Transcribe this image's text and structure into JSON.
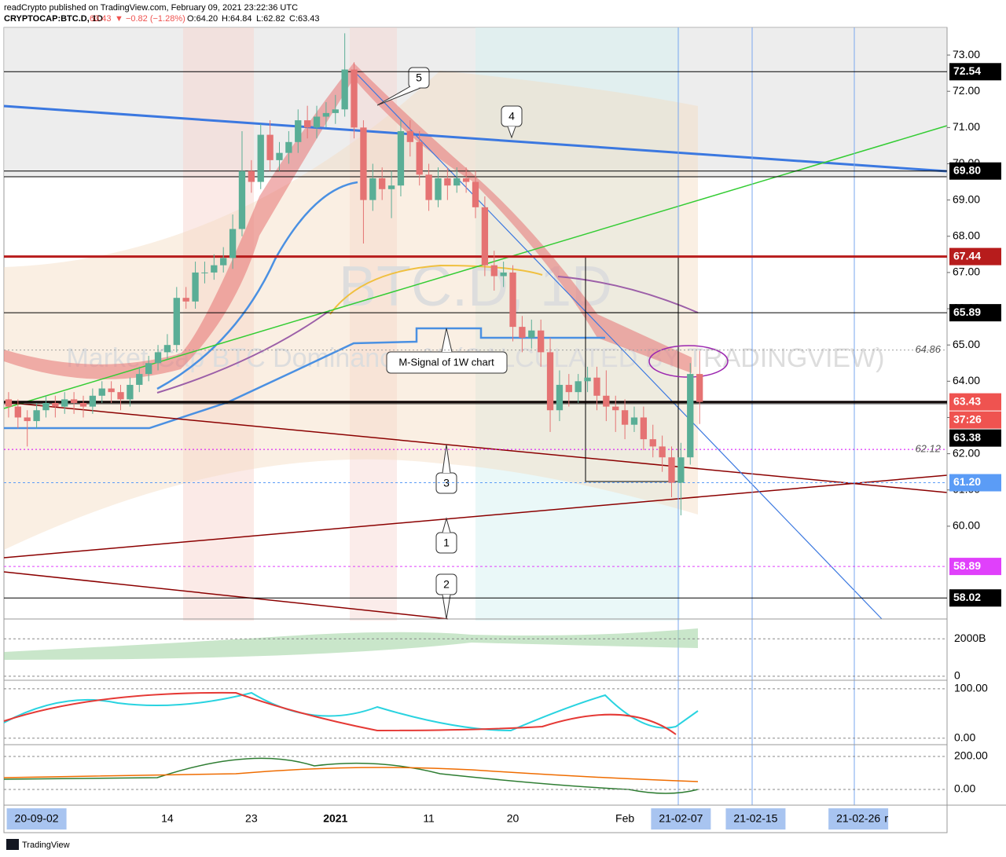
{
  "header": {
    "line1": "readCrypto published on TradingView.com, February 09, 2021 23:22:36 UTC",
    "symbol": "CRYPTOCAP:BTC.D, 1D",
    "price": "63.43",
    "change": "▼ −0.82 (−1.28%)",
    "open": "O:64.20",
    "high": "H:64.84",
    "low": "L:62.82",
    "close": "C:63.43"
  },
  "watermark": {
    "symbol": "BTC.D, 1D",
    "name": "Market Cap BTC Dominance, % (CALCULATED BY TRADINGVIEW)"
  },
  "annotations": [
    "1",
    "2",
    "3",
    "4",
    "5",
    "M-Signal of 1W chart"
  ],
  "chart_data": {
    "type": "candlestick",
    "categories": [
      null,
      null,
      null,
      "20-09-02",
      null,
      null,
      null,
      null,
      null,
      null,
      null,
      null,
      null,
      null,
      null,
      null,
      null,
      "14",
      null,
      null,
      null,
      null,
      null,
      null,
      null,
      null,
      "23",
      null,
      null,
      null,
      null,
      null,
      null,
      null,
      null,
      "2021",
      null,
      null,
      null,
      null,
      null,
      null,
      null,
      null,
      null,
      "11",
      null,
      null,
      null,
      null,
      null,
      null,
      null,
      null,
      "20",
      null,
      null,
      null,
      null,
      null,
      null,
      null,
      null,
      null,
      null,
      null,
      "Feb",
      null,
      null,
      null,
      null,
      null,
      "21-02-07",
      null,
      null,
      null,
      null,
      null,
      null,
      null,
      "21-02-15",
      null,
      null,
      null,
      null,
      null,
      null,
      null,
      null,
      null,
      null,
      "21-02-26",
      null,
      null,
      "r",
      null,
      null,
      null,
      null,
      null,
      null
    ],
    "open": [
      63.5,
      63.3,
      63.0,
      62.9,
      63.2,
      63.4,
      63.3,
      63.5,
      63.4,
      63.3,
      63.6,
      63.8,
      63.7,
      63.5,
      63.9,
      64.2,
      64.5,
      64.8,
      65.0,
      66.3,
      66.2,
      67.0,
      67.0,
      67.2,
      67.4,
      68.2,
      69.8,
      69.5,
      70.8,
      70.1,
      70.3,
      70.6,
      71.2,
      71.0,
      71.3,
      71.4,
      71.5,
      72.6,
      71.0,
      69.0,
      69.6,
      69.3,
      69.4,
      70.9,
      70.6,
      69.7,
      69.0,
      69.6,
      69.4,
      69.6,
      69.5,
      68.8,
      67.2,
      66.9,
      67.0,
      65.5,
      65.2,
      65.4,
      64.8,
      63.2,
      63.9,
      63.7,
      64.0,
      64.1,
      63.6,
      63.3,
      63.2,
      62.8,
      63.0,
      62.4,
      62.2,
      61.9,
      61.2,
      61.9,
      64.2,
      null,
      null,
      null,
      null,
      null,
      null,
      null,
      null,
      null,
      null,
      null,
      null,
      null,
      null,
      null,
      null,
      null,
      null,
      null,
      null,
      null,
      null,
      null,
      null,
      null,
      null
    ],
    "high": [
      63.7,
      63.5,
      63.2,
      63.4,
      63.6,
      63.6,
      63.7,
      63.7,
      63.6,
      63.8,
      64.0,
      64.0,
      63.9,
      64.1,
      64.4,
      64.7,
      65.0,
      65.3,
      66.6,
      66.6,
      67.3,
      67.3,
      67.5,
      67.7,
      68.6,
      70.9,
      70.1,
      71.1,
      71.2,
      70.6,
      70.9,
      71.5,
      71.6,
      71.6,
      71.7,
      71.9,
      73.6,
      72.8,
      71.2,
      70.0,
      69.9,
      69.8,
      71.2,
      71.2,
      70.9,
      70.0,
      69.9,
      69.9,
      69.9,
      69.9,
      69.8,
      69.1,
      67.6,
      67.3,
      67.2,
      65.8,
      65.7,
      65.7,
      65.2,
      64.3,
      64.2,
      64.2,
      64.4,
      64.4,
      64.3,
      63.6,
      63.5,
      63.3,
      63.3,
      62.8,
      62.5,
      62.2,
      62.3,
      64.5,
      64.84,
      null,
      null,
      null,
      null,
      null,
      null,
      null,
      null,
      null,
      null,
      null,
      null,
      null,
      null,
      null,
      null,
      null,
      null,
      null,
      null,
      null,
      null,
      null,
      null,
      null,
      null
    ],
    "low": [
      63.0,
      62.7,
      62.2,
      62.7,
      63.0,
      63.0,
      63.1,
      63.1,
      63.0,
      63.1,
      63.4,
      63.4,
      63.2,
      63.3,
      63.7,
      64.0,
      64.3,
      64.6,
      64.8,
      66.0,
      66.0,
      66.7,
      66.8,
      67.0,
      67.1,
      68.0,
      69.2,
      69.3,
      69.8,
      69.8,
      70.0,
      70.3,
      70.7,
      70.7,
      71.0,
      71.1,
      71.3,
      70.7,
      67.8,
      68.7,
      69.0,
      68.5,
      69.1,
      70.2,
      69.4,
      68.7,
      68.8,
      69.0,
      69.2,
      69.2,
      68.5,
      66.9,
      66.5,
      66.6,
      65.1,
      64.8,
      64.9,
      64.4,
      62.6,
      62.9,
      63.3,
      63.4,
      63.7,
      63.2,
      62.9,
      62.6,
      62.4,
      62.6,
      62.1,
      61.9,
      61.5,
      60.8,
      60.3,
      61.7,
      62.82,
      null,
      null,
      null,
      null,
      null,
      null,
      null,
      null,
      null,
      null,
      null,
      null,
      null,
      null,
      null,
      null,
      null,
      null,
      null,
      null,
      null,
      null,
      null,
      null,
      null,
      null
    ],
    "close": [
      63.3,
      63.0,
      62.9,
      63.2,
      63.4,
      63.3,
      63.5,
      63.4,
      63.3,
      63.6,
      63.8,
      63.7,
      63.5,
      63.9,
      64.2,
      64.5,
      64.8,
      65.0,
      66.3,
      66.2,
      67.0,
      67.0,
      67.2,
      67.4,
      68.2,
      69.8,
      69.5,
      70.8,
      70.1,
      70.3,
      70.6,
      71.2,
      71.0,
      71.3,
      71.4,
      71.5,
      72.6,
      71.0,
      69.0,
      69.6,
      69.3,
      69.4,
      70.9,
      70.6,
      69.7,
      69.0,
      69.6,
      69.4,
      69.6,
      69.5,
      68.8,
      67.2,
      66.9,
      67.0,
      65.5,
      65.2,
      65.4,
      64.8,
      63.2,
      63.9,
      63.7,
      64.0,
      64.1,
      63.6,
      63.3,
      63.2,
      62.8,
      63.0,
      62.4,
      62.2,
      61.9,
      61.2,
      61.9,
      64.2,
      63.43,
      null,
      null,
      null,
      null,
      null,
      null,
      null,
      null,
      null,
      null,
      null,
      null,
      null,
      null,
      null,
      null,
      null,
      null,
      null,
      null,
      null,
      null,
      null,
      null,
      null,
      null
    ],
    "up_color": "#5aae96",
    "down_color": "#e57373",
    "ylim": [
      57.44,
      73.76
    ],
    "yticks": [
      {
        "value": 60,
        "label": "60.00"
      },
      {
        "value": 61,
        "label": "61.00"
      },
      {
        "value": 62,
        "label": "62.00"
      },
      {
        "value": 63,
        "label": "63.00"
      },
      {
        "value": 64,
        "label": "64.00"
      },
      {
        "value": 65,
        "label": "65.00"
      },
      {
        "value": 66,
        "label": "66.00"
      },
      {
        "value": 67,
        "label": "67.00"
      },
      {
        "value": 68,
        "label": "68.00"
      },
      {
        "value": 69,
        "label": "69.00"
      },
      {
        "value": 70,
        "label": "70.00"
      },
      {
        "value": 71,
        "label": "71.00"
      },
      {
        "value": 72,
        "label": "72.00"
      },
      {
        "value": 73,
        "label": "73.00"
      }
    ],
    "price_labels": [
      {
        "value": 72.54,
        "label": "72.54",
        "color": "#000000"
      },
      {
        "value": 69.8,
        "label": "69.80",
        "color": "#000000"
      },
      {
        "value": 67.44,
        "label": "67.44",
        "color": "#b71c1c"
      },
      {
        "value": 65.89,
        "label": "65.89",
        "color": "#000000"
      },
      {
        "value": 63.43,
        "label": "63.43",
        "color": "#ef5350",
        "countdown": "37:26"
      },
      {
        "value": 63.38,
        "label": "63.38",
        "color": "#000000"
      },
      {
        "value": 61.2,
        "label": "61.20",
        "color": "#5b9cf6"
      },
      {
        "value": 58.89,
        "label": "58.89",
        "color": "#e040fb"
      },
      {
        "value": 58.02,
        "label": "58.02",
        "color": "#000000"
      }
    ],
    "level_notes": [
      {
        "value": 64.86,
        "label": "64.86",
        "color": "#9e9e9e"
      },
      {
        "value": 62.12,
        "label": "62.12",
        "color": "#d500f9"
      }
    ],
    "panes": [
      {
        "ylim": [
          -213,
          2979
        ],
        "yticks": [
          {
            "value": 2000,
            "label": "2000B"
          },
          0
        ]
      },
      {
        "ylim": [
          -13,
          114
        ],
        "yticks": [
          {
            "value": 100,
            "label": "100.00"
          },
          {
            "value": 0,
            "label": "0.00"
          }
        ]
      },
      {
        "ylim": [
          -95,
          262
        ],
        "yticks": [
          {
            "value": 200,
            "label": "200.00"
          },
          {
            "value": 0,
            "label": "0.00"
          }
        ]
      }
    ]
  },
  "footer": "TradingView"
}
